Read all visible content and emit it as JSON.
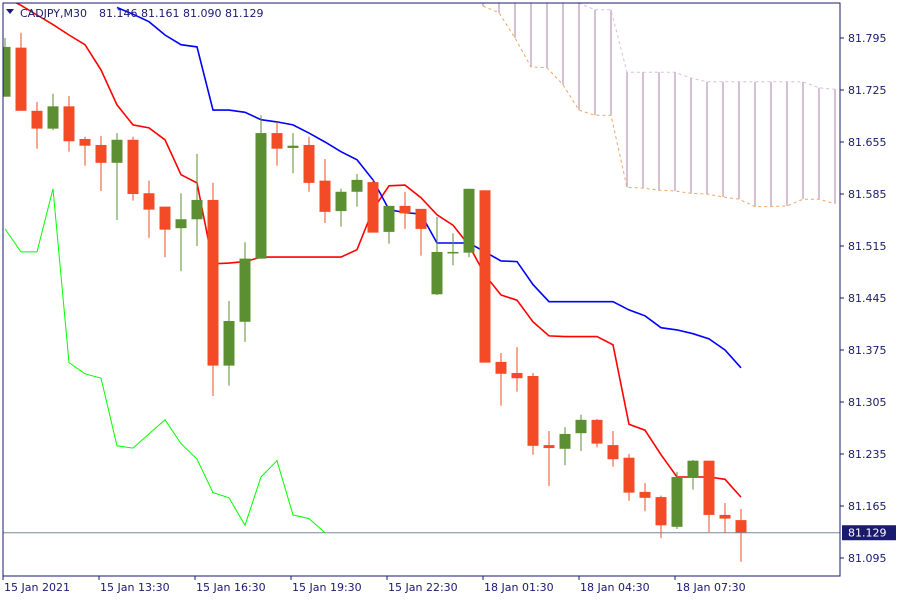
{
  "header": {
    "symbol": "CADJPY,M30",
    "ohlc": "81.146 81.161 81.090 81.129"
  },
  "colors": {
    "bull": "#5b8f32",
    "bear": "#f24b26",
    "tenkan": "#ff0000",
    "kijun": "#0000ff",
    "chikou": "#00ff00",
    "senkou_a": "#f4a460",
    "senkou_b": "#d8bfd8",
    "axis": "#1a1a6e",
    "price_line": "#778899",
    "price_label_bg": "#1a1a6e"
  },
  "chart_data": {
    "type": "candlestick",
    "symbol": "CADJPY",
    "timeframe": "M30",
    "ylim": [
      81.07,
      81.82
    ],
    "y_ticks": [
      "81.795",
      "81.725",
      "81.655",
      "81.585",
      "81.515",
      "81.445",
      "81.375",
      "81.305",
      "81.235",
      "81.165",
      "81.095"
    ],
    "x_ticks": [
      {
        "bar": 0,
        "label": "15 Jan 2021"
      },
      {
        "bar": 6,
        "label": "15 Jan 13:30"
      },
      {
        "bar": 12,
        "label": "15 Jan 16:30"
      },
      {
        "bar": 18,
        "label": "15 Jan 19:30"
      },
      {
        "bar": 24,
        "label": "15 Jan 22:30"
      },
      {
        "bar": 30,
        "label": "18 Jan 01:30"
      },
      {
        "bar": 36,
        "label": "18 Jan 04:30"
      },
      {
        "bar": 42,
        "label": "18 Jan 07:30"
      }
    ],
    "last_price": "81.129",
    "candles": [
      [
        81.716,
        81.795,
        81.716,
        81.783
      ],
      [
        81.782,
        81.802,
        81.697,
        81.697
      ],
      [
        81.697,
        81.709,
        81.646,
        81.673
      ],
      [
        81.673,
        81.72,
        81.671,
        81.703
      ],
      [
        81.703,
        81.717,
        81.642,
        81.656
      ],
      [
        81.659,
        81.662,
        81.623,
        81.65
      ],
      [
        81.651,
        81.663,
        81.589,
        81.627
      ],
      [
        81.627,
        81.667,
        81.55,
        81.658
      ],
      [
        81.658,
        81.662,
        81.576,
        81.585
      ],
      [
        81.586,
        81.603,
        81.526,
        81.564
      ],
      [
        81.568,
        81.568,
        81.5,
        81.537
      ],
      [
        81.539,
        81.586,
        81.481,
        81.551
      ],
      [
        81.551,
        81.639,
        81.515,
        81.577
      ],
      [
        81.577,
        81.6,
        81.313,
        81.354
      ],
      [
        81.354,
        81.441,
        81.327,
        81.414
      ],
      [
        81.413,
        81.52,
        81.386,
        81.498
      ],
      [
        81.498,
        81.691,
        81.498,
        81.667
      ],
      [
        81.667,
        81.682,
        81.623,
        81.646
      ],
      [
        81.647,
        81.667,
        81.613,
        81.65
      ],
      [
        81.651,
        81.662,
        81.588,
        81.6
      ],
      [
        81.603,
        81.632,
        81.546,
        81.561
      ],
      [
        81.562,
        81.592,
        81.541,
        81.588
      ],
      [
        81.588,
        81.612,
        81.568,
        81.604
      ],
      [
        81.601,
        81.604,
        81.533,
        81.533
      ],
      [
        81.534,
        81.569,
        81.518,
        81.569
      ],
      [
        81.569,
        81.588,
        81.538,
        81.559
      ],
      [
        81.565,
        81.565,
        81.502,
        81.538
      ],
      [
        81.45,
        81.554,
        81.449,
        81.507
      ],
      [
        81.507,
        81.532,
        81.489,
        81.507
      ],
      [
        81.506,
        81.592,
        81.5,
        81.592
      ],
      [
        81.59,
        81.59,
        81.358,
        81.358
      ],
      [
        81.359,
        81.371,
        81.3,
        81.343
      ],
      [
        81.344,
        81.379,
        81.319,
        81.337
      ],
      [
        81.34,
        81.344,
        81.234,
        81.246
      ],
      [
        81.247,
        81.266,
        81.192,
        81.243
      ],
      [
        81.242,
        81.271,
        81.22,
        81.262
      ],
      [
        81.263,
        81.288,
        81.239,
        81.281
      ],
      [
        81.281,
        81.282,
        81.244,
        81.249
      ],
      [
        81.247,
        81.266,
        81.218,
        81.228
      ],
      [
        81.23,
        81.235,
        81.172,
        81.183
      ],
      [
        81.184,
        81.196,
        81.158,
        81.176
      ],
      [
        81.177,
        81.179,
        81.122,
        81.139
      ],
      [
        81.137,
        81.211,
        81.134,
        81.204
      ],
      [
        81.204,
        81.227,
        81.187,
        81.226
      ],
      [
        81.226,
        81.226,
        81.13,
        81.153
      ],
      [
        81.153,
        81.169,
        81.129,
        81.148
      ],
      [
        81.146,
        81.161,
        81.09,
        81.129
      ]
    ],
    "ichimoku": {
      "tenkan": [
        81.85,
        81.839,
        81.826,
        81.813,
        81.799,
        81.786,
        81.752,
        81.705,
        81.678,
        81.674,
        81.658,
        81.611,
        81.6,
        81.491,
        81.492,
        81.494,
        81.5,
        81.5,
        81.5,
        81.5,
        81.5,
        81.5,
        81.51,
        81.564,
        81.596,
        81.597,
        81.58,
        81.557,
        81.543,
        81.516,
        81.476,
        81.449,
        81.442,
        81.413,
        81.394,
        81.393,
        81.393,
        81.393,
        81.382,
        81.275,
        81.267,
        81.234,
        81.204,
        81.204,
        81.204,
        81.201,
        81.177
      ],
      "kijun": [
        null,
        null,
        null,
        null,
        null,
        null,
        null,
        81.836,
        81.827,
        81.817,
        81.799,
        81.786,
        81.783,
        81.698,
        81.698,
        81.695,
        81.685,
        81.682,
        81.678,
        81.667,
        81.655,
        81.642,
        81.631,
        81.604,
        81.564,
        81.56,
        81.558,
        81.519,
        81.519,
        81.519,
        81.507,
        81.495,
        81.494,
        81.463,
        81.44,
        81.44,
        81.44,
        81.44,
        81.44,
        81.429,
        81.421,
        81.405,
        81.402,
        81.397,
        81.39,
        81.375,
        81.351
      ],
      "chikou": [
        81.538,
        81.507,
        81.507,
        81.592,
        81.358,
        81.343,
        81.337,
        81.246,
        81.243,
        81.262,
        81.281,
        81.249,
        81.228,
        81.183,
        81.176,
        81.139,
        81.204,
        81.226,
        81.153,
        81.148,
        81.129
      ],
      "senkou_start_bar": 30,
      "senkou_a": [
        81.838,
        81.829,
        81.795,
        81.756,
        81.755,
        81.732,
        81.698,
        81.691,
        81.691,
        81.594,
        81.593,
        81.59,
        81.589,
        81.586,
        81.585,
        81.581,
        81.578,
        81.568,
        81.568,
        81.569,
        81.578,
        81.578,
        81.572
      ],
      "senkou_b": [
        81.849,
        81.849,
        81.849,
        81.849,
        81.849,
        81.845,
        81.842,
        81.833,
        81.833,
        81.749,
        81.749,
        81.749,
        81.749,
        81.741,
        81.736,
        81.736,
        81.736,
        81.736,
        81.736,
        81.736,
        81.736,
        81.728,
        81.726
      ]
    }
  }
}
